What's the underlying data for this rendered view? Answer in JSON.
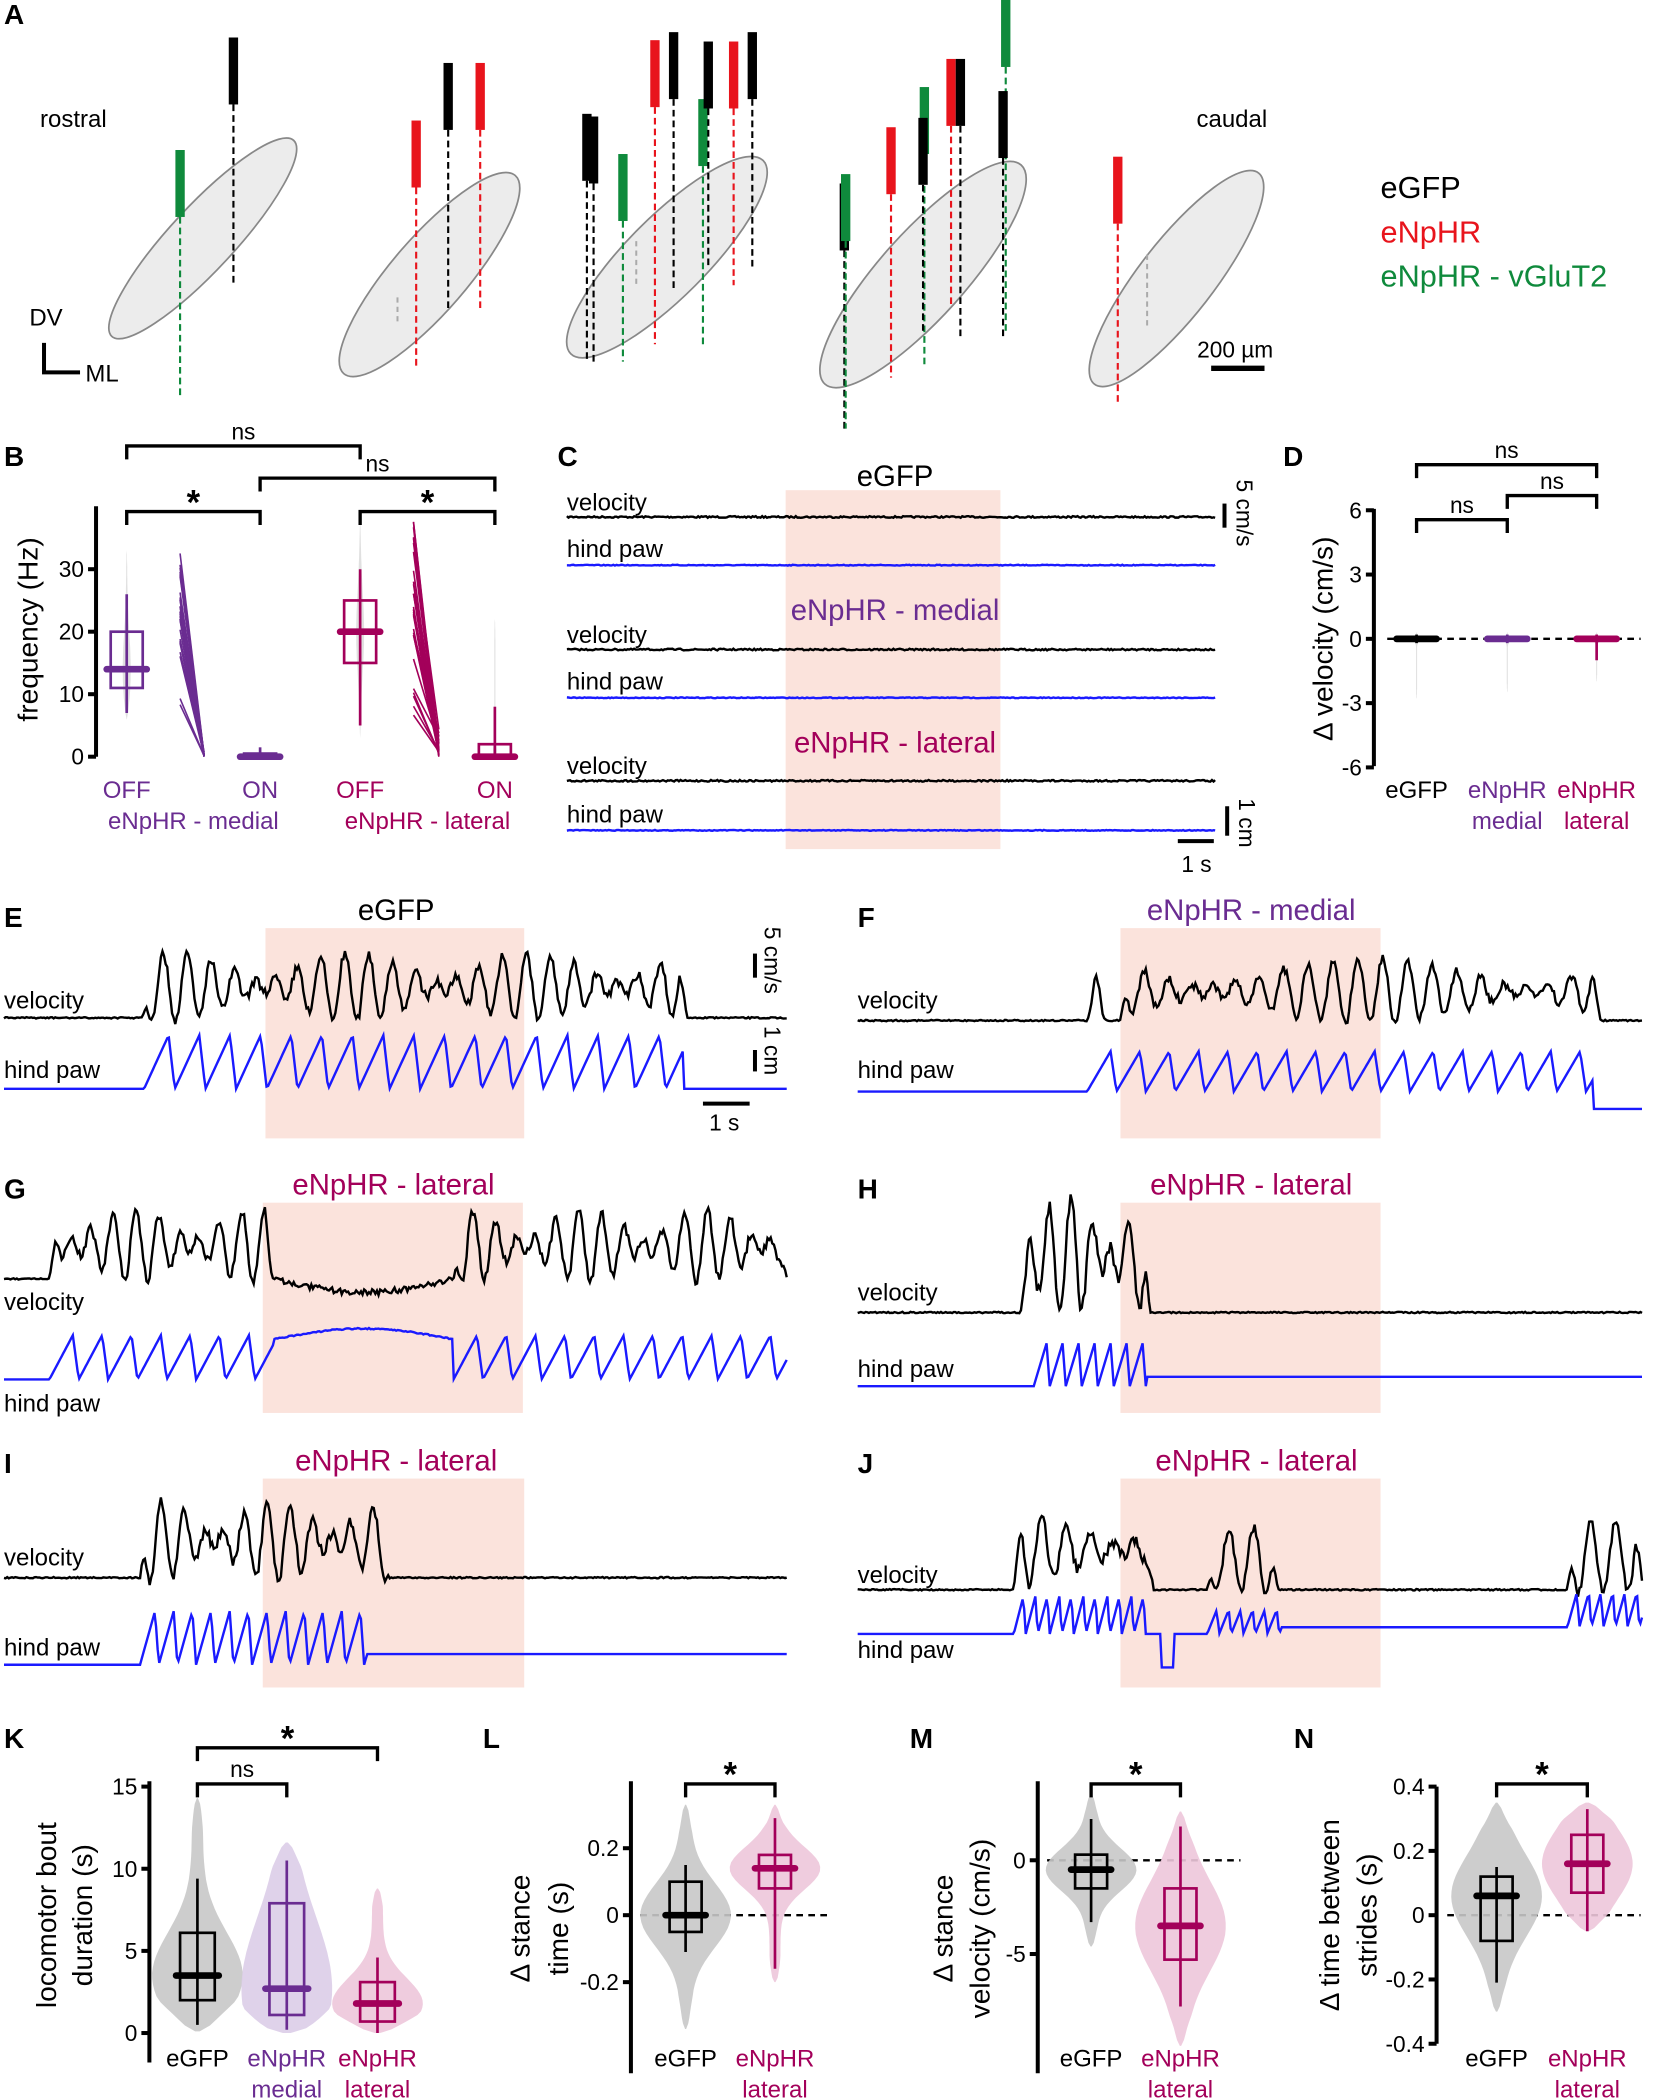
{
  "panel_labels": {
    "A": "A",
    "B": "B",
    "C": "C",
    "D": "D",
    "E": "E",
    "F": "F",
    "G": "G",
    "H": "H",
    "I": "I",
    "J": "J",
    "K": "K",
    "L": "L",
    "M": "M",
    "N": "N"
  },
  "colors": {
    "eGFP": "#000000",
    "eNpHR": "#e8141c",
    "vGluT2": "#0f8a3c",
    "medial": "#6a2c91",
    "lateral": "#a3005a",
    "paw_trace": "#1a1aff",
    "light_on": "#fbe3dc",
    "violin_gray": "#c8c8c8"
  },
  "panelA": {
    "rostral": "rostral",
    "caudal": "caudal",
    "dv": "DV",
    "ml": "ML",
    "scale": "200 µm",
    "legend": [
      {
        "label": "eGFP",
        "color": "#000000"
      },
      {
        "label": "eNpHR",
        "color": "#e8141c"
      },
      {
        "label": "eNpHR - vGluT2",
        "color": "#0f8a3c"
      }
    ]
  },
  "traces": {
    "velocity": "velocity",
    "hind_paw": "hind paw",
    "scale_velocity": "5 cm/s",
    "scale_paw": "1 cm",
    "scale_time": "1 s"
  },
  "titles": {
    "C": [
      "eGFP",
      "eNpHR - medial",
      "eNpHR - lateral"
    ],
    "E": "eGFP",
    "F": "eNpHR - medial",
    "G": "eNpHR - lateral",
    "H": "eNpHR - lateral",
    "I": "eNpHR - lateral",
    "J": "eNpHR - lateral"
  },
  "chart_data": [
    {
      "panel": "B",
      "type": "box",
      "ylabel": "frequency (Hz)",
      "yticks": [
        "0",
        "10",
        "20",
        "30"
      ],
      "ylim": [
        0,
        40
      ],
      "groups": [
        {
          "label": "OFF",
          "color": "#6a2c91",
          "median": 14,
          "q1": 11,
          "q3": 20,
          "whisker": [
            7,
            26
          ],
          "range": [
            6,
            33
          ]
        },
        {
          "label": "ON",
          "color": "#6a2c91",
          "median": 0,
          "q1": 0,
          "q3": 0.5,
          "whisker": [
            0,
            1.5
          ],
          "range": [
            0,
            1.5
          ]
        },
        {
          "label": "OFF",
          "color": "#a3005a",
          "median": 20,
          "q1": 15,
          "q3": 25,
          "whisker": [
            5,
            30
          ],
          "range": [
            3,
            38
          ]
        },
        {
          "label": "ON",
          "color": "#a3005a",
          "median": 0,
          "q1": 0,
          "q3": 2,
          "whisker": [
            0,
            8
          ],
          "range": [
            0,
            22
          ]
        }
      ],
      "group_labels": [
        {
          "label": "eNpHR - medial",
          "color": "#6a2c91"
        },
        {
          "label": "eNpHR - lateral",
          "color": "#a3005a"
        }
      ],
      "significance": [
        {
          "from": 0,
          "to": 2,
          "label": "ns"
        },
        {
          "from": 1,
          "to": 3,
          "label": "ns"
        },
        {
          "from": 0,
          "to": 1,
          "label": "*"
        },
        {
          "from": 2,
          "to": 3,
          "label": "*"
        }
      ]
    },
    {
      "panel": "D",
      "type": "box",
      "ylabel": "Δ velocity (cm/s)",
      "yticks": [
        "6",
        "3",
        "0",
        "-3",
        "-6"
      ],
      "ylim": [
        -6,
        6
      ],
      "groups": [
        {
          "label": "eGFP",
          "sublabel": "",
          "color": "#000000",
          "median": 0,
          "q1": -0.1,
          "q3": 0.1,
          "whisker": [
            -0.2,
            0.2
          ],
          "range": [
            -2.8,
            0.3
          ]
        },
        {
          "label": "eNpHR",
          "sublabel": "medial",
          "color": "#6a2c91",
          "median": 0,
          "q1": -0.1,
          "q3": 0.1,
          "whisker": [
            -0.2,
            0.2
          ],
          "range": [
            -2.5,
            0.3
          ]
        },
        {
          "label": "eNpHR",
          "sublabel": "lateral",
          "color": "#a3005a",
          "median": 0,
          "q1": -0.1,
          "q3": 0.1,
          "whisker": [
            -1.0,
            0.2
          ],
          "range": [
            -2.0,
            0.3
          ]
        }
      ],
      "significance": [
        {
          "from": 0,
          "to": 2,
          "label": "ns"
        },
        {
          "from": 1,
          "to": 2,
          "label": "ns"
        },
        {
          "from": 0,
          "to": 1,
          "label": "ns"
        }
      ]
    },
    {
      "panel": "K",
      "type": "violin",
      "ylabel": [
        "locomotor bout",
        "duration (s)"
      ],
      "yticks": [
        "0",
        "5",
        "10",
        "15"
      ],
      "ylim": [
        0,
        15
      ],
      "groups": [
        {
          "label": "eGFP",
          "sublabel": "",
          "color": "#000000",
          "median": 3.5,
          "q1": 2.0,
          "q3": 6.1,
          "whisker": [
            0.5,
            9.4
          ],
          "range": [
            0.1,
            14.3
          ]
        },
        {
          "label": "eNpHR",
          "sublabel": "medial",
          "color": "#6a2c91",
          "median": 2.7,
          "q1": 1.1,
          "q3": 7.9,
          "whisker": [
            0.2,
            10.5
          ],
          "range": [
            0,
            11.6
          ]
        },
        {
          "label": "eNpHR",
          "sublabel": "lateral",
          "color": "#a3005a",
          "median": 1.8,
          "q1": 0.7,
          "q3": 3.1,
          "whisker": [
            0,
            4.6
          ],
          "range": [
            0,
            8.8
          ]
        }
      ],
      "significance": [
        {
          "from": 0,
          "to": 2,
          "label": "*"
        },
        {
          "from": 0,
          "to": 1,
          "label": "ns"
        }
      ]
    },
    {
      "panel": "L",
      "type": "violin",
      "ylabel": [
        "Δ stance",
        "time (s)"
      ],
      "yticks": [
        "0.2",
        "0",
        "-0.2"
      ],
      "ylim": [
        -0.4,
        0.3
      ],
      "groups": [
        {
          "label": "eGFP",
          "sublabel": "",
          "color": "#000000",
          "median": 0,
          "q1": -0.05,
          "q3": 0.1,
          "whisker": [
            -0.11,
            0.15
          ],
          "range": [
            -0.34,
            0.33
          ]
        },
        {
          "label": "eNpHR",
          "sublabel": "lateral",
          "color": "#a3005a",
          "median": 0.14,
          "q1": 0.08,
          "q3": 0.18,
          "whisker": [
            -0.16,
            0.29
          ],
          "range": [
            -0.2,
            0.33
          ]
        }
      ],
      "significance": [
        {
          "from": 0,
          "to": 1,
          "label": "*"
        }
      ]
    },
    {
      "panel": "M",
      "type": "violin",
      "ylabel": [
        "Δ stance",
        "velocity (cm/s)"
      ],
      "yticks": [
        "0",
        "-5"
      ],
      "ylim": [
        -11,
        3
      ],
      "groups": [
        {
          "label": "eGFP",
          "sublabel": "",
          "color": "#000000",
          "median": -0.5,
          "q1": -1.5,
          "q3": 0.3,
          "whisker": [
            -3.3,
            2.2
          ],
          "range": [
            -4.6,
            3.5
          ]
        },
        {
          "label": "eNpHR",
          "sublabel": "lateral",
          "color": "#a3005a",
          "median": -3.5,
          "q1": -5.3,
          "q3": -1.5,
          "whisker": [
            -7.8,
            1.8
          ],
          "range": [
            -9.9,
            2.6
          ]
        }
      ],
      "significance": [
        {
          "from": 0,
          "to": 1,
          "label": "*"
        }
      ]
    },
    {
      "panel": "N",
      "type": "violin",
      "ylabel": [
        "Δ time between",
        "strides (s)"
      ],
      "yticks": [
        "0.4",
        "0.2",
        "0",
        "-0.2",
        "-0.4"
      ],
      "ylim": [
        -0.4,
        0.4
      ],
      "groups": [
        {
          "label": "eGFP",
          "sublabel": "",
          "color": "#000000",
          "median": 0.06,
          "q1": -0.08,
          "q3": 0.12,
          "whisker": [
            -0.21,
            0.15
          ],
          "range": [
            -0.3,
            0.35
          ]
        },
        {
          "label": "eNpHR",
          "sublabel": "lateral",
          "color": "#a3005a",
          "median": 0.16,
          "q1": 0.07,
          "q3": 0.25,
          "whisker": [
            -0.05,
            0.33
          ],
          "range": [
            -0.05,
            0.35
          ]
        }
      ],
      "significance": [
        {
          "from": 0,
          "to": 1,
          "label": "*"
        }
      ]
    }
  ]
}
